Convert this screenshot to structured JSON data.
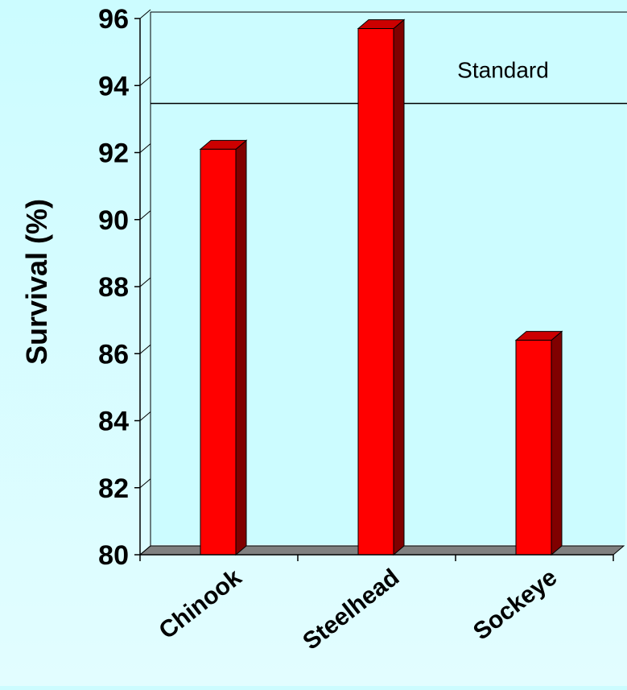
{
  "chart_data": {
    "type": "bar",
    "categories": [
      "Chinook",
      "Steelhead",
      "Sockeye"
    ],
    "values": [
      92.1,
      95.7,
      86.4
    ],
    "ylabel": "Survival (%)",
    "ylim": [
      80,
      96
    ],
    "yticks": [
      "80",
      "82",
      "84",
      "86",
      "88",
      "90",
      "92",
      "94",
      "96"
    ],
    "reference_line": {
      "label": "Standard",
      "value": 93.2
    },
    "colors": {
      "bar_front": "#ff0000",
      "bar_side": "#800000",
      "bar_top": "#cc0000",
      "floor": "#808080",
      "plot_bg": "#ccfcff"
    }
  }
}
